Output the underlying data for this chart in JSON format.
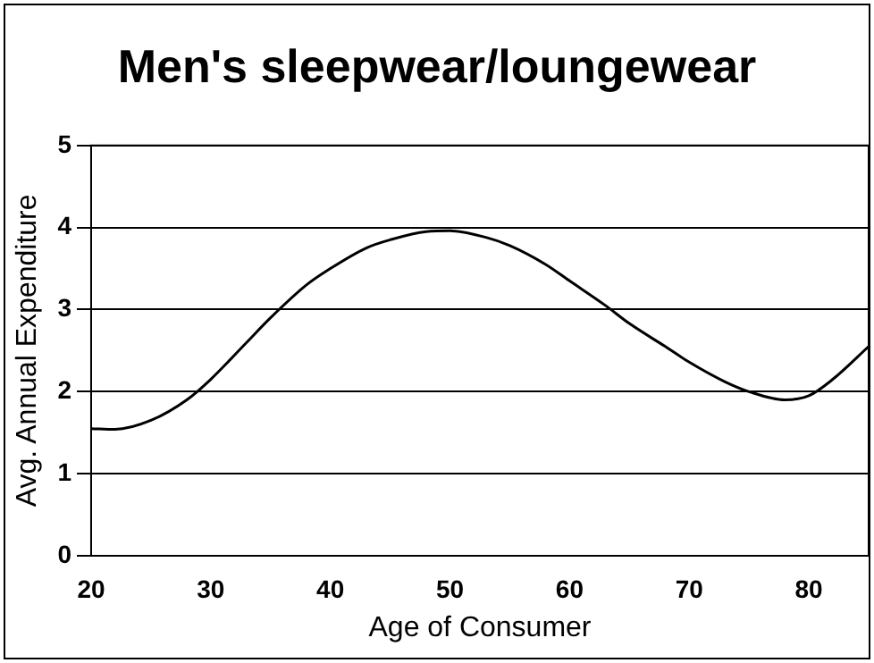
{
  "chart_data": {
    "type": "line",
    "title": "Men's sleepwear/loungewear",
    "xlabel": "Age of Consumer",
    "ylabel": "Avg. Annual Expenditure",
    "x": [
      20,
      22,
      25,
      28,
      30,
      33,
      35,
      38,
      40,
      43,
      45,
      48,
      50,
      53,
      55,
      58,
      60,
      63,
      65,
      68,
      70,
      73,
      75,
      78,
      80,
      82,
      85
    ],
    "series": [
      {
        "color": "#000000",
        "values": [
          1.55,
          1.54,
          1.65,
          1.9,
          2.15,
          2.6,
          2.9,
          3.3,
          3.5,
          3.75,
          3.85,
          3.95,
          3.96,
          3.88,
          3.78,
          3.55,
          3.35,
          3.05,
          2.83,
          2.55,
          2.36,
          2.12,
          2.0,
          1.9,
          1.95,
          2.15,
          2.55
        ]
      }
    ],
    "xlim": [
      20,
      85
    ],
    "xticks": [
      20,
      30,
      40,
      50,
      60,
      70,
      80
    ],
    "ylim": [
      0,
      5
    ],
    "yticks": [
      0,
      1,
      2,
      3,
      4,
      5
    ],
    "grid": "y",
    "legend": false,
    "marker": "none",
    "line_style": "solid"
  }
}
